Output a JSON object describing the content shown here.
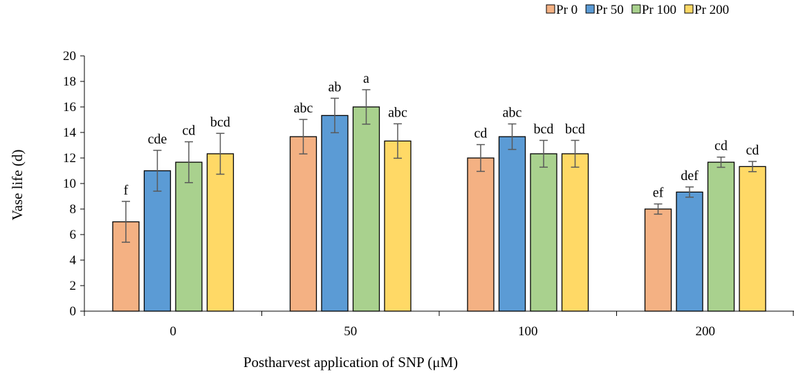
{
  "chart_data": {
    "type": "bar",
    "xlabel": "Postharvest application of SNP (μM)",
    "ylabel": "Vase life (d)",
    "categories": [
      "0",
      "50",
      "100",
      "200"
    ],
    "ylim": [
      0,
      20
    ],
    "yticks": [
      0,
      2,
      4,
      6,
      8,
      10,
      12,
      14,
      16,
      18,
      20
    ],
    "grid": false,
    "legend_position": "top-right",
    "series": [
      {
        "name": "Pr 0",
        "color": "#F4B183",
        "values": [
          7.0,
          13.67,
          12.0,
          8.0
        ],
        "errors": [
          1.6,
          1.35,
          1.05,
          0.4
        ],
        "labels": [
          "f",
          "abc",
          "cd",
          "ef"
        ]
      },
      {
        "name": "Pr 50",
        "color": "#5B9BD5",
        "values": [
          11.0,
          15.33,
          13.67,
          9.33
        ],
        "errors": [
          1.6,
          1.35,
          1.0,
          0.4
        ],
        "labels": [
          "cde",
          "ab",
          "abc",
          "def"
        ]
      },
      {
        "name": "Pr 100",
        "color": "#A9D18E",
        "values": [
          11.67,
          16.0,
          12.33,
          11.67
        ],
        "errors": [
          1.6,
          1.35,
          1.05,
          0.4
        ],
        "labels": [
          "cd",
          "a",
          "bcd",
          "cd"
        ]
      },
      {
        "name": "Pr 200",
        "color": "#FFD966",
        "values": [
          12.33,
          13.33,
          12.33,
          11.33
        ],
        "errors": [
          1.6,
          1.35,
          1.05,
          0.4
        ],
        "labels": [
          "bcd",
          "abc",
          "bcd",
          "cd"
        ]
      }
    ]
  }
}
